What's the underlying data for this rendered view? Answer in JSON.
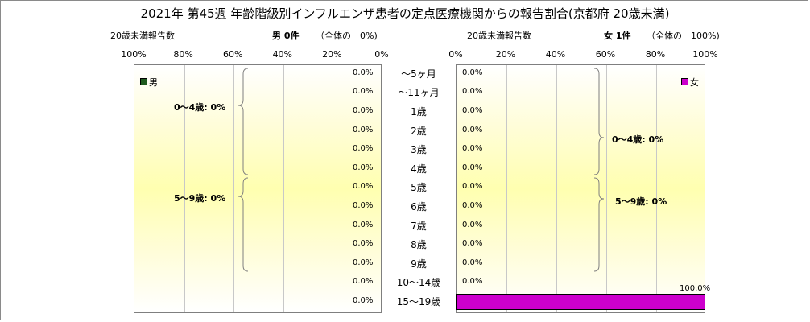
{
  "title": "2021年 第45週 年齢階級別インフルエンザ患者の定点医療機関からの報告割合(京都府 20歳未満)",
  "male_panel": {
    "axis_caption": "20歳未満報告数",
    "count_label": "男 0件",
    "share_label": "（全体の　0%)",
    "legend": "男",
    "legend_color": "#1e5a1e",
    "ticks": [
      "100%",
      "80%",
      "60%",
      "40%",
      "20%",
      "0%"
    ],
    "group_labels": [
      "0～4歳: 0%",
      "5～9歳: 0%"
    ]
  },
  "female_panel": {
    "axis_caption": "20歳未満報告数",
    "count_label": "女 1件",
    "share_label": "（全体の　100%)",
    "legend": "女",
    "legend_color": "#cc00cc",
    "ticks": [
      "0%",
      "20%",
      "40%",
      "60%",
      "80%",
      "100%"
    ],
    "group_labels": [
      "0～4歳: 0%",
      "5～9歳: 0%"
    ]
  },
  "chart_data": {
    "type": "bar",
    "orientation": "horizontal-butterfly",
    "categories": [
      "～5ヶ月",
      "～11ヶ月",
      "1歳",
      "2歳",
      "3歳",
      "4歳",
      "5歳",
      "6歳",
      "7歳",
      "8歳",
      "9歳",
      "10～14歳",
      "15～19歳"
    ],
    "series": [
      {
        "name": "男",
        "color": "#1e5a1e",
        "values": [
          0,
          0,
          0,
          0,
          0,
          0,
          0,
          0,
          0,
          0,
          0,
          0,
          0
        ],
        "labels": [
          "0.0%",
          "0.0%",
          "0.0%",
          "0.0%",
          "0.0%",
          "0.0%",
          "0.0%",
          "0.0%",
          "0.0%",
          "0.0%",
          "0.0%",
          "0.0%",
          "0.0%"
        ]
      },
      {
        "name": "女",
        "color": "#cc00cc",
        "values": [
          0,
          0,
          0,
          0,
          0,
          0,
          0,
          0,
          0,
          0,
          0,
          0,
          100
        ],
        "labels": [
          "0.0%",
          "0.0%",
          "0.0%",
          "0.0%",
          "0.0%",
          "0.0%",
          "0.0%",
          "0.0%",
          "0.0%",
          "0.0%",
          "0.0%",
          "0.0%",
          "100.0%"
        ]
      }
    ],
    "xlim": [
      0,
      100
    ],
    "x_unit": "%",
    "grid": true,
    "legend_position": "top-inside"
  }
}
